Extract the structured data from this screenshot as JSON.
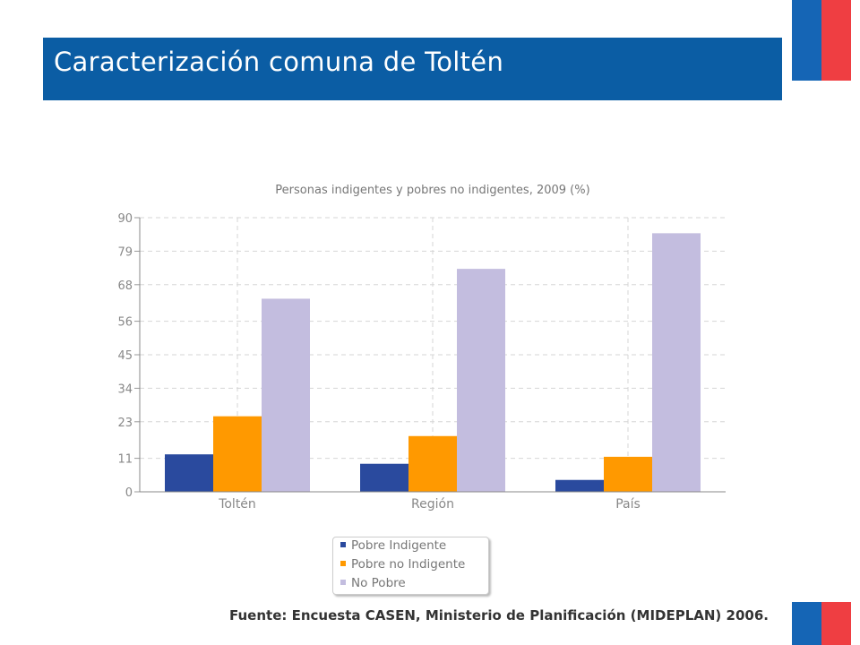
{
  "slide": {
    "title": "Caracterización comuna de Toltén",
    "source": "Fuente: Encuesta CASEN, Ministerio de Planificación (MIDEPLAN) 2006."
  },
  "colors": {
    "title_bar": "#0b5da4",
    "flag_blue": "#1565b5",
    "flag_red": "#ef3e42"
  },
  "chart_data": {
    "type": "bar",
    "title": "Personas indigentes y pobres no indigentes, 2009 (%)",
    "categories": [
      "Toltén",
      "Región",
      "País"
    ],
    "series": [
      {
        "name": "Pobre Indigente",
        "color": "#2a4a9e",
        "values": [
          12.3,
          9.2,
          3.9
        ]
      },
      {
        "name": "Pobre no Indigente",
        "color": "#ff9900",
        "values": [
          24.8,
          18.3,
          11.5
        ]
      },
      {
        "name": "No Pobre",
        "color": "#c3bddf",
        "values": [
          63.4,
          73.2,
          84.9
        ]
      }
    ],
    "yticks": [
      "0",
      "11",
      "23",
      "34",
      "45",
      "56",
      "68",
      "79",
      "90"
    ],
    "ylim": [
      0,
      90
    ],
    "grid": true,
    "legend_position": "bottom-center"
  }
}
